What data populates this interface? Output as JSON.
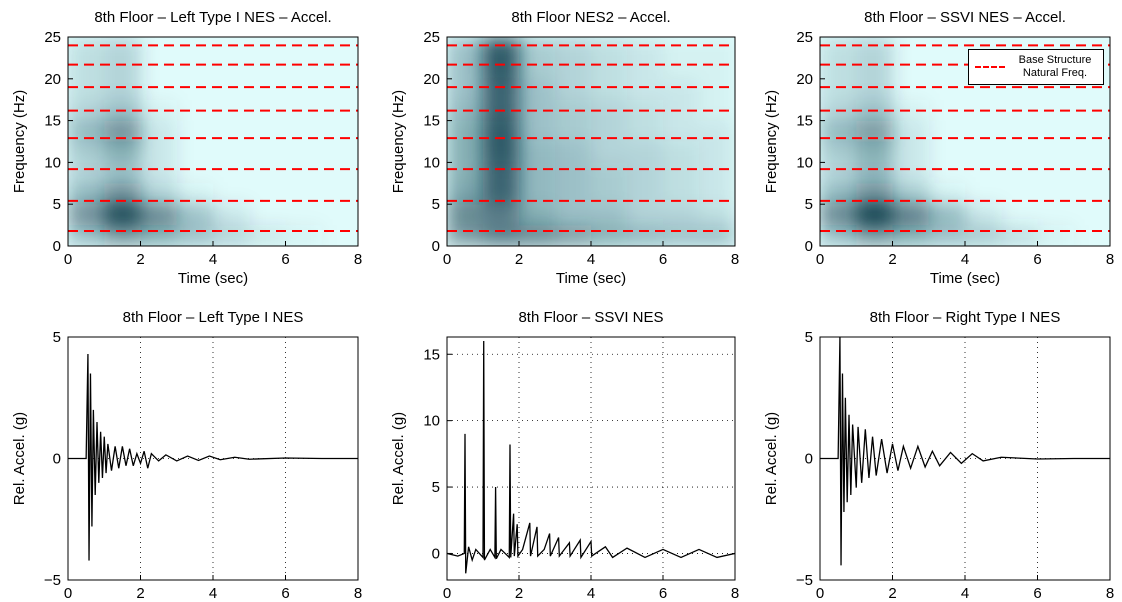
{
  "chart_data": [
    {
      "type": "heatmap",
      "title": "8th Floor – Left Type I NES – Accel.",
      "xlabel": "Time (sec)",
      "ylabel": "Frequency (Hz)",
      "xlim": [
        0,
        8
      ],
      "ylim": [
        0,
        25
      ],
      "xticks": [
        0,
        2,
        4,
        6,
        8
      ],
      "yticks": [
        0,
        5,
        10,
        15,
        20,
        25
      ],
      "background": "#e0fbfb",
      "color": "#0e3c4c",
      "xbins": [
        0,
        1,
        2,
        3,
        4,
        5,
        6,
        7,
        8
      ],
      "ybins": [
        0,
        2.5,
        5,
        7.5,
        10,
        12.5,
        15,
        17.5,
        20,
        22.5,
        25
      ],
      "z": [
        [
          0.3,
          0.5,
          0.4,
          0.3,
          0.2,
          0.1,
          0.05,
          0
        ],
        [
          0.55,
          0.95,
          0.6,
          0.3,
          0.1,
          0,
          0,
          0
        ],
        [
          0.35,
          0.55,
          0.2,
          0.05,
          0,
          0,
          0,
          0
        ],
        [
          0.2,
          0.3,
          0.1,
          0,
          0,
          0,
          0,
          0
        ],
        [
          0.25,
          0.4,
          0.1,
          0,
          0,
          0,
          0,
          0
        ],
        [
          0.35,
          0.55,
          0.1,
          0,
          0,
          0,
          0,
          0
        ],
        [
          0.2,
          0.3,
          0.05,
          0,
          0,
          0,
          0,
          0
        ],
        [
          0.15,
          0.2,
          0,
          0,
          0,
          0,
          0,
          0
        ],
        [
          0.15,
          0.2,
          0,
          0,
          0,
          0,
          0,
          0
        ],
        [
          0.15,
          0.2,
          0,
          0,
          0,
          0,
          0,
          0
        ]
      ],
      "hlines": {
        "values": [
          1.8,
          5.4,
          9.2,
          12.9,
          16.2,
          19.0,
          21.7,
          24.0
        ],
        "color": "#ff0000"
      }
    },
    {
      "type": "heatmap",
      "title": "8th Floor NES2 – Accel.",
      "xlabel": "Time (sec)",
      "ylabel": "Frequency (Hz)",
      "xlim": [
        0,
        8
      ],
      "ylim": [
        0,
        25
      ],
      "xticks": [
        0,
        2,
        4,
        6,
        8
      ],
      "yticks": [
        0,
        5,
        10,
        15,
        20,
        25
      ],
      "background": "#e0fbfb",
      "color": "#0e3c4c",
      "xbins": [
        0,
        1,
        2,
        3,
        4,
        5,
        6,
        7,
        8
      ],
      "ybins": [
        0,
        2.5,
        5,
        7.5,
        10,
        12.5,
        15,
        17.5,
        20,
        22.5,
        25
      ],
      "z": [
        [
          0.5,
          0.65,
          0.6,
          0.5,
          0.4,
          0.35,
          0.3,
          0.3
        ],
        [
          0.6,
          0.65,
          0.4,
          0.3,
          0.3,
          0.2,
          0.2,
          0.15
        ],
        [
          0.45,
          0.8,
          0.35,
          0.3,
          0.25,
          0.2,
          0.15,
          0.1
        ],
        [
          0.4,
          0.8,
          0.35,
          0.3,
          0.25,
          0.2,
          0.15,
          0.1
        ],
        [
          0.4,
          0.85,
          0.35,
          0.3,
          0.2,
          0.2,
          0.15,
          0.1
        ],
        [
          0.4,
          0.85,
          0.3,
          0.25,
          0.2,
          0.15,
          0.1,
          0.1
        ],
        [
          0.35,
          0.8,
          0.3,
          0.25,
          0.2,
          0.15,
          0.1,
          0.05
        ],
        [
          0.3,
          0.8,
          0.3,
          0.2,
          0.15,
          0.1,
          0.1,
          0.05
        ],
        [
          0.3,
          0.85,
          0.25,
          0.2,
          0.15,
          0.1,
          0.05,
          0.05
        ],
        [
          0.3,
          0.85,
          0.25,
          0.2,
          0.15,
          0.1,
          0.05,
          0.05
        ]
      ],
      "hlines": {
        "values": [
          1.8,
          5.4,
          9.2,
          12.9,
          16.2,
          19.0,
          21.7,
          24.0
        ],
        "color": "#ff0000"
      }
    },
    {
      "type": "heatmap",
      "title": "8th Floor – SSVI NES – Accel.",
      "xlabel": "Time (sec)",
      "ylabel": "Frequency (Hz)",
      "xlim": [
        0,
        8
      ],
      "ylim": [
        0,
        25
      ],
      "xticks": [
        0,
        2,
        4,
        6,
        8
      ],
      "yticks": [
        0,
        5,
        10,
        15,
        20,
        25
      ],
      "background": "#e0fbfb",
      "color": "#0e3c4c",
      "xbins": [
        0,
        1,
        2,
        3,
        4,
        5,
        6,
        7,
        8
      ],
      "ybins": [
        0,
        2.5,
        5,
        7.5,
        10,
        12.5,
        15,
        17.5,
        20,
        22.5,
        25
      ],
      "z": [
        [
          0.3,
          0.5,
          0.4,
          0.3,
          0.25,
          0.15,
          0.05,
          0
        ],
        [
          0.6,
          1.0,
          0.65,
          0.35,
          0.1,
          0,
          0,
          0
        ],
        [
          0.35,
          0.55,
          0.25,
          0.05,
          0,
          0,
          0,
          0
        ],
        [
          0.2,
          0.35,
          0.1,
          0,
          0,
          0,
          0,
          0
        ],
        [
          0.25,
          0.4,
          0.1,
          0,
          0,
          0,
          0,
          0
        ],
        [
          0.35,
          0.5,
          0.1,
          0,
          0,
          0,
          0,
          0
        ],
        [
          0.2,
          0.3,
          0.05,
          0,
          0,
          0,
          0,
          0
        ],
        [
          0.15,
          0.2,
          0,
          0,
          0,
          0,
          0,
          0
        ],
        [
          0.15,
          0.2,
          0,
          0,
          0,
          0,
          0,
          0
        ],
        [
          0.15,
          0.2,
          0,
          0,
          0,
          0,
          0,
          0
        ]
      ],
      "hlines": {
        "name": "Base Structure Natural Freq.",
        "values": [
          1.8,
          5.4,
          9.2,
          12.9,
          16.2,
          19.0,
          21.7,
          24.0
        ],
        "color": "#ff0000"
      },
      "legend": "upper right"
    },
    {
      "type": "line",
      "title": "8th Floor – Left Type I NES",
      "xlabel": "Time (sec)",
      "ylabel": "Rel. Accel. (g)",
      "xlim": [
        0,
        8
      ],
      "ylim": [
        -5,
        5
      ],
      "xticks": [
        0,
        2,
        4,
        6,
        8
      ],
      "yticks": [
        {
          "value": -5,
          "label": "−5"
        },
        0,
        5
      ],
      "grid": true,
      "color": "#000000",
      "x": [
        0,
        0.5,
        0.55,
        0.58,
        0.62,
        0.66,
        0.7,
        0.75,
        0.8,
        0.85,
        0.9,
        0.95,
        1.0,
        1.05,
        1.1,
        1.2,
        1.3,
        1.4,
        1.5,
        1.6,
        1.7,
        1.8,
        1.9,
        2.0,
        2.1,
        2.2,
        2.3,
        2.5,
        2.7,
        3.0,
        3.3,
        3.6,
        3.9,
        4.2,
        4.6,
        5,
        6,
        7,
        8
      ],
      "values": [
        0,
        0,
        4.3,
        -4.2,
        3.5,
        -2.8,
        2,
        -1.5,
        1.5,
        -1,
        1.1,
        -0.8,
        0.9,
        -0.6,
        0.6,
        -0.5,
        0.5,
        -0.4,
        0.5,
        -0.3,
        0.4,
        -0.3,
        0.2,
        -0.2,
        0.3,
        -0.4,
        0.2,
        -0.1,
        0.15,
        -0.1,
        0.1,
        -0.08,
        0.1,
        -0.05,
        0.05,
        -0.03,
        0.02,
        0,
        0
      ]
    },
    {
      "type": "line",
      "title": "8th Floor – SSVI NES",
      "xlabel": "Time (sec)",
      "ylabel": "Rel. Accel. (g)",
      "xlim": [
        0,
        8
      ],
      "ylim": [
        -2,
        16.3
      ],
      "xticks": [
        0,
        2,
        4,
        6,
        8
      ],
      "yticks": [
        0,
        5,
        10,
        15
      ],
      "grid": true,
      "color": "#000000",
      "x": [
        0,
        0.3,
        0.48,
        0.5,
        0.52,
        0.6,
        0.7,
        0.8,
        1.0,
        1.02,
        1.04,
        1.2,
        1.33,
        1.35,
        1.37,
        1.5,
        1.73,
        1.75,
        1.77,
        1.85,
        1.87,
        1.95,
        1.97,
        2.1,
        2.3,
        2.32,
        2.5,
        2.52,
        2.7,
        2.85,
        2.87,
        3.1,
        3.12,
        3.4,
        3.42,
        3.7,
        3.72,
        4.0,
        4.02,
        4.4,
        4.6,
        5,
        5.5,
        6,
        6.5,
        7,
        7.5,
        8
      ],
      "values": [
        0,
        -0.2,
        0,
        9,
        -1.5,
        0.5,
        -0.5,
        0.3,
        -0.3,
        16,
        -0.5,
        0.3,
        -0.3,
        5,
        -0.4,
        0.3,
        -0.3,
        8.2,
        -0.3,
        3,
        -0.2,
        2.2,
        -0.2,
        0.3,
        2.3,
        -0.2,
        2,
        -0.2,
        0.3,
        1.5,
        -0.2,
        1.2,
        -0.2,
        0.8,
        -0.2,
        1.0,
        -0.3,
        0.9,
        -0.2,
        0.5,
        -0.3,
        0.4,
        -0.3,
        0.3,
        -0.3,
        0.3,
        -0.3,
        0
      ]
    },
    {
      "type": "line",
      "title": "8th Floor – Right Type I NES",
      "xlabel": "Time (sec)",
      "ylabel": "Rel. Accel. (g)",
      "xlim": [
        0,
        8
      ],
      "ylim": [
        -5,
        5
      ],
      "xticks": [
        0,
        2,
        4,
        6,
        8
      ],
      "yticks": [
        {
          "value": -5,
          "label": "−5"
        },
        0,
        5
      ],
      "grid": true,
      "color": "#000000",
      "x": [
        0,
        0.5,
        0.55,
        0.58,
        0.62,
        0.66,
        0.7,
        0.75,
        0.8,
        0.85,
        0.9,
        1.0,
        1.05,
        1.15,
        1.25,
        1.35,
        1.45,
        1.55,
        1.7,
        1.85,
        2.0,
        2.15,
        2.3,
        2.5,
        2.7,
        2.9,
        3.1,
        3.3,
        3.6,
        3.9,
        4.2,
        4.5,
        5,
        6,
        7,
        8
      ],
      "values": [
        0,
        0,
        5,
        -4.4,
        3.5,
        -2.2,
        2.5,
        -1.8,
        1.8,
        -1.5,
        1.4,
        -1.2,
        1.3,
        -1,
        1.2,
        -0.8,
        0.9,
        -0.7,
        0.8,
        -0.6,
        0.6,
        -0.5,
        0.5,
        -0.4,
        0.5,
        -0.35,
        0.3,
        -0.3,
        0.25,
        -0.2,
        0.2,
        -0.1,
        0.05,
        -0.02,
        0,
        0
      ]
    }
  ]
}
